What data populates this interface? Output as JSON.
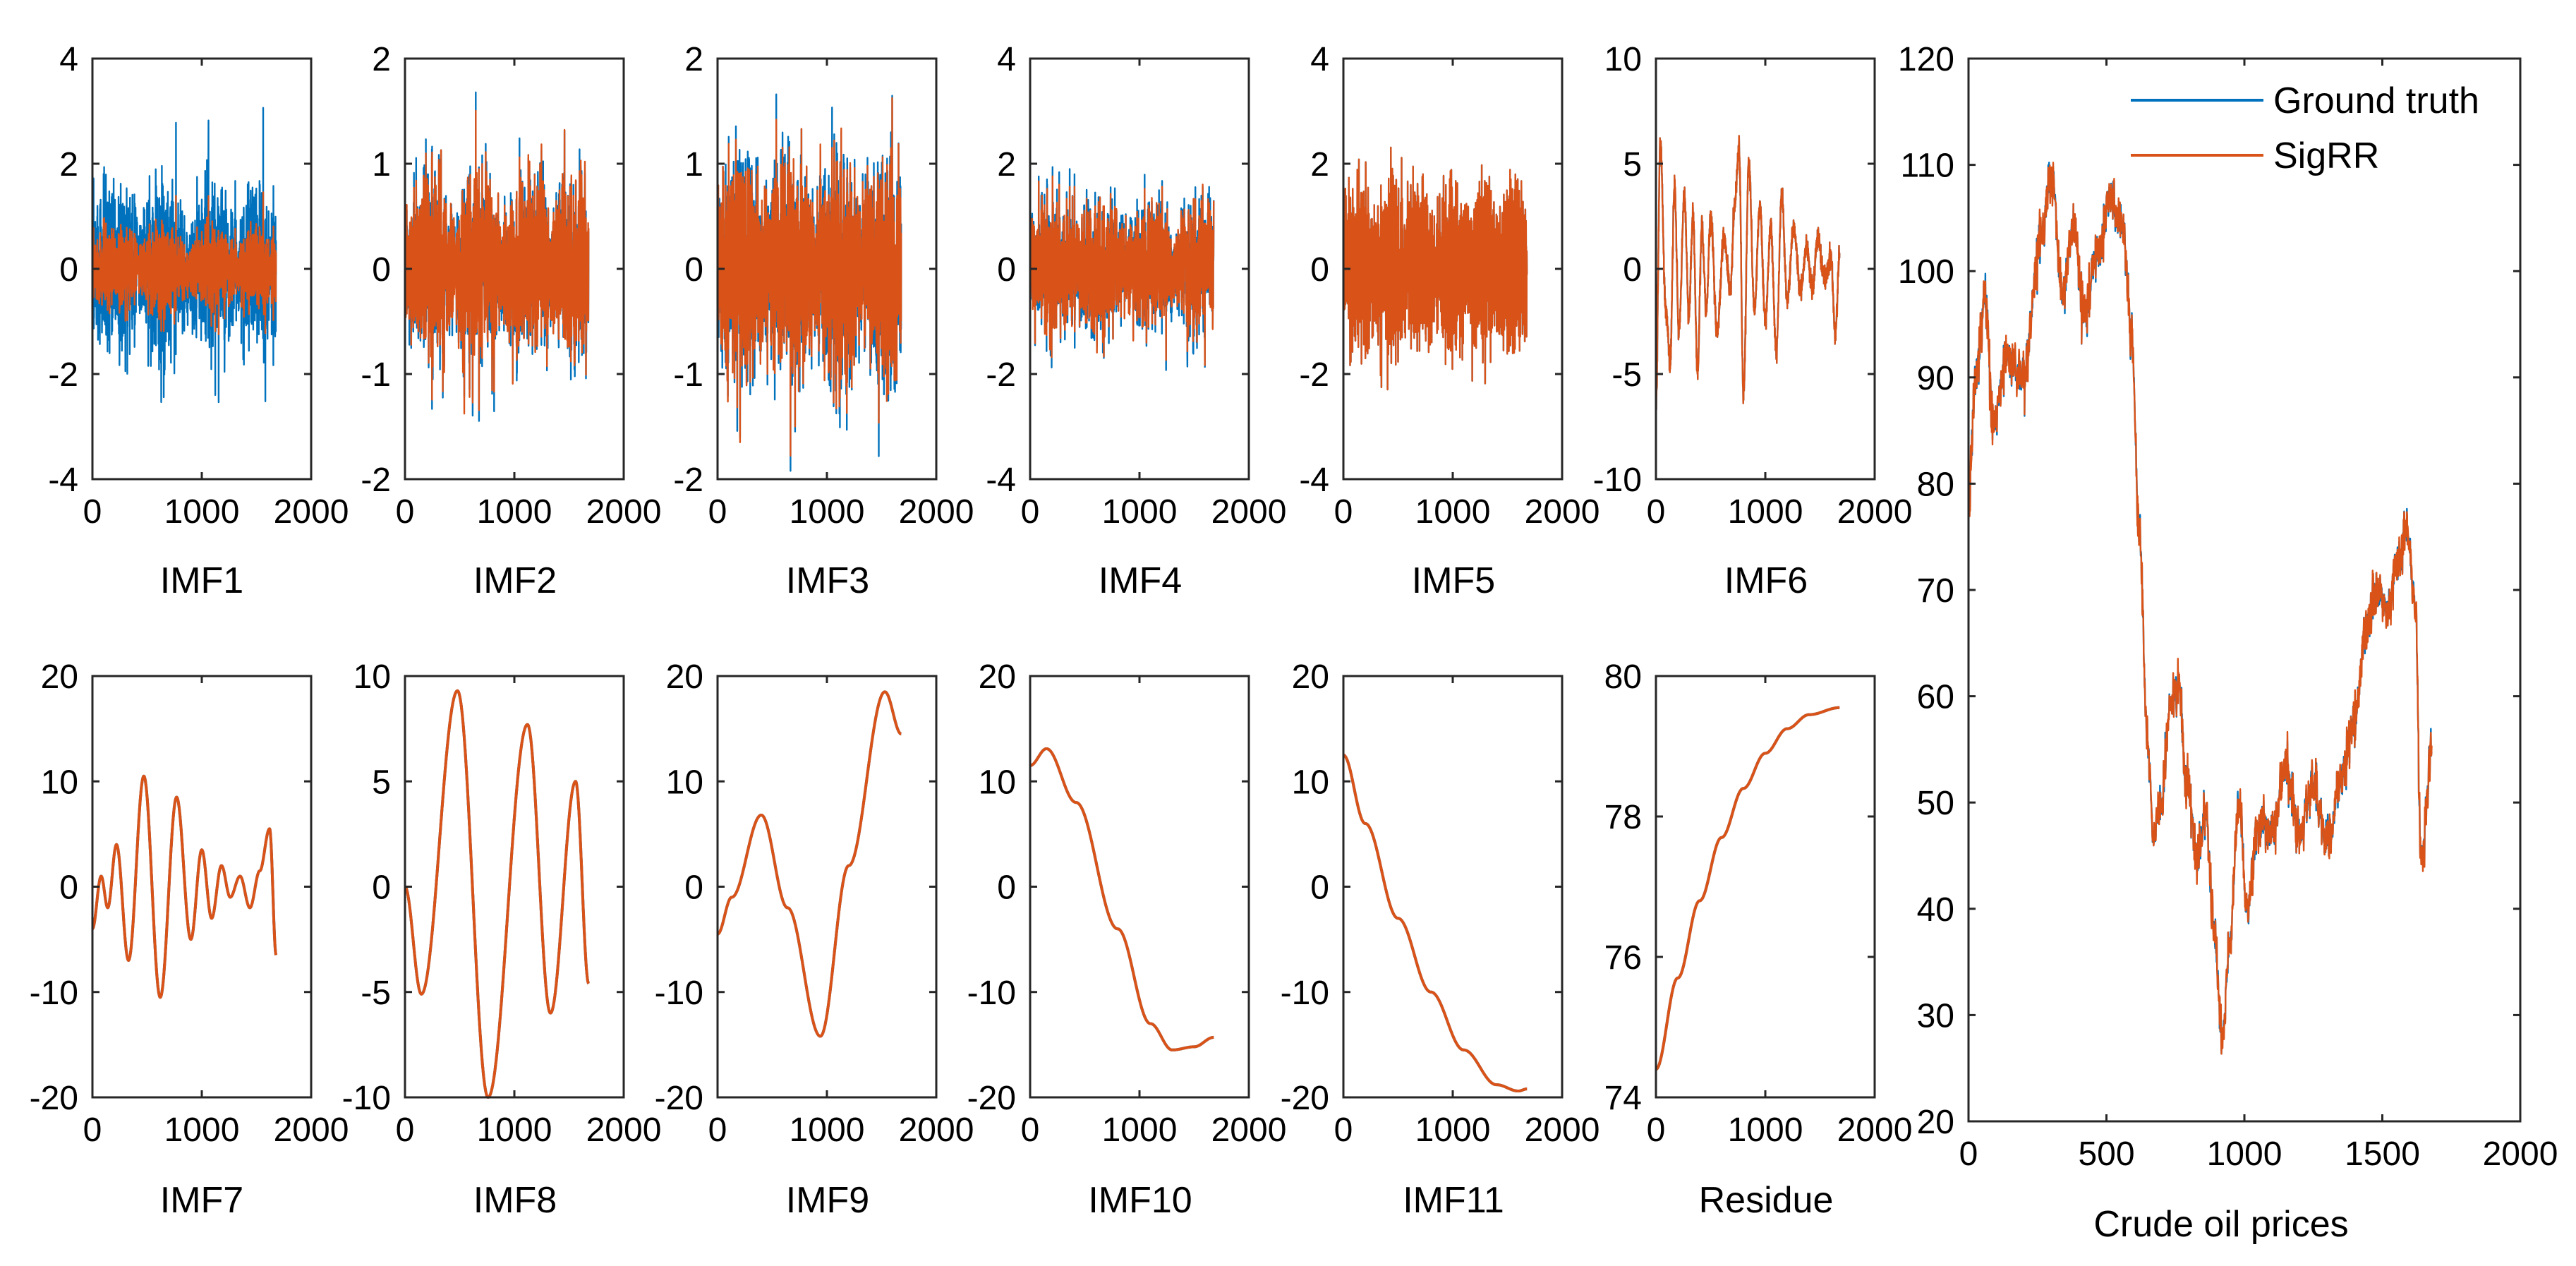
{
  "colors": {
    "ground_truth": "#0072BD",
    "sigrr": "#D95319",
    "axes": "#262626"
  },
  "legend": {
    "placement": "top-right",
    "entries": [
      "Ground truth",
      "SigRR"
    ]
  },
  "chart_data": [
    {
      "id": "imf1",
      "type": "line",
      "xlabel": "IMF1",
      "xlim": [
        0,
        2000
      ],
      "ylim": [
        -4,
        4
      ],
      "xticks": [
        "0",
        "1000",
        "2000"
      ],
      "yticks": [
        "-4",
        "-2",
        "0",
        "2",
        "4"
      ],
      "n": 1680,
      "signal": "noise",
      "amp_gt": 2.6,
      "amp_sr": 1.4,
      "seed": 11
    },
    {
      "id": "imf2",
      "type": "line",
      "xlabel": "IMF2",
      "xlim": [
        0,
        2000
      ],
      "ylim": [
        -2,
        2
      ],
      "xticks": [
        "0",
        "1000",
        "2000"
      ],
      "yticks": [
        "-2",
        "-1",
        "0",
        "1",
        "2"
      ],
      "n": 1680,
      "signal": "noise",
      "amp_gt": 1.55,
      "amp_sr": 1.6,
      "seed": 22
    },
    {
      "id": "imf3",
      "type": "line",
      "xlabel": "IMF3",
      "xlim": [
        0,
        2000
      ],
      "ylim": [
        -2,
        2
      ],
      "xticks": [
        "0",
        "1000",
        "2000"
      ],
      "yticks": [
        "-2",
        "-1",
        "0",
        "1",
        "2"
      ],
      "n": 1680,
      "signal": "noise",
      "amp_gt": 1.9,
      "amp_sr": 1.9,
      "seed": 33
    },
    {
      "id": "imf4",
      "type": "line",
      "xlabel": "IMF4",
      "xlim": [
        0,
        2000
      ],
      "ylim": [
        -4,
        4
      ],
      "xticks": [
        "0",
        "1000",
        "2000"
      ],
      "yticks": [
        "-4",
        "-2",
        "0",
        "2",
        "4"
      ],
      "n": 1680,
      "signal": "noise",
      "amp_gt": 2.2,
      "amp_sr": 2.2,
      "seed": 44
    },
    {
      "id": "imf5",
      "type": "line",
      "xlabel": "IMF5",
      "xlim": [
        0,
        2000
      ],
      "ylim": [
        -4,
        4
      ],
      "xticks": [
        "0",
        "1000",
        "2000"
      ],
      "yticks": [
        "-4",
        "-2",
        "0",
        "2",
        "4"
      ],
      "n": 1680,
      "signal": "burst",
      "amp_gt": 3.1,
      "amp_sr": 3.1,
      "seed": 55
    },
    {
      "id": "imf6",
      "type": "line",
      "xlabel": "IMF6",
      "xlim": [
        0,
        2000
      ],
      "ylim": [
        -10,
        10
      ],
      "xticks": [
        "0",
        "1000",
        "2000"
      ],
      "yticks": [
        "-10",
        "-5",
        "0",
        "5",
        "10"
      ],
      "n": 1680,
      "signal": "oscill",
      "anchors": [
        [
          0,
          -6.5
        ],
        [
          40,
          6
        ],
        [
          90,
          -2
        ],
        [
          130,
          -4.5
        ],
        [
          170,
          4
        ],
        [
          210,
          -3
        ],
        [
          260,
          3.5
        ],
        [
          300,
          -2
        ],
        [
          340,
          2.5
        ],
        [
          380,
          -5
        ],
        [
          420,
          2
        ],
        [
          460,
          -2
        ],
        [
          500,
          2.5
        ],
        [
          560,
          -3
        ],
        [
          620,
          1.5
        ],
        [
          680,
          -1
        ],
        [
          720,
          3
        ],
        [
          760,
          5.8
        ],
        [
          800,
          -6
        ],
        [
          850,
          5
        ],
        [
          900,
          -2
        ],
        [
          950,
          3
        ],
        [
          1000,
          -2.5
        ],
        [
          1050,
          2
        ],
        [
          1100,
          -4
        ],
        [
          1150,
          3.5
        ],
        [
          1200,
          -1.5
        ],
        [
          1260,
          2
        ],
        [
          1320,
          -1
        ],
        [
          1380,
          1
        ],
        [
          1430,
          -1
        ],
        [
          1480,
          1.5
        ],
        [
          1540,
          -0.5
        ],
        [
          1600,
          0.5
        ],
        [
          1640,
          -3
        ],
        [
          1680,
          0.7
        ]
      ]
    },
    {
      "id": "imf7",
      "type": "line",
      "xlabel": "IMF7",
      "xlim": [
        0,
        2000
      ],
      "ylim": [
        -20,
        20
      ],
      "xticks": [
        "0",
        "1000",
        "2000"
      ],
      "yticks": [
        "-20",
        "-10",
        "0",
        "10",
        "20"
      ],
      "n": 1680,
      "signal": "smooth",
      "anchors": [
        [
          0,
          -4
        ],
        [
          80,
          1
        ],
        [
          140,
          -2
        ],
        [
          220,
          4
        ],
        [
          330,
          -7
        ],
        [
          470,
          10.5
        ],
        [
          620,
          -10.5
        ],
        [
          770,
          8.5
        ],
        [
          900,
          -5
        ],
        [
          1000,
          3.5
        ],
        [
          1090,
          -3
        ],
        [
          1180,
          2
        ],
        [
          1260,
          -1
        ],
        [
          1350,
          1
        ],
        [
          1440,
          -2
        ],
        [
          1530,
          1.5
        ],
        [
          1620,
          5.5
        ],
        [
          1680,
          -6.5
        ]
      ]
    },
    {
      "id": "imf8",
      "type": "line",
      "xlabel": "IMF8",
      "xlim": [
        0,
        2000
      ],
      "ylim": [
        -10,
        10
      ],
      "xticks": [
        "0",
        "1000",
        "2000"
      ],
      "yticks": [
        "-10",
        "-5",
        "0",
        "5",
        "10"
      ],
      "n": 1680,
      "signal": "smooth",
      "anchors": [
        [
          0,
          0
        ],
        [
          150,
          -5.1
        ],
        [
          480,
          9.3
        ],
        [
          760,
          -10
        ],
        [
          1120,
          7.7
        ],
        [
          1330,
          -6
        ],
        [
          1560,
          5
        ],
        [
          1680,
          -4.6
        ]
      ]
    },
    {
      "id": "imf9",
      "type": "line",
      "xlabel": "IMF9",
      "xlim": [
        0,
        2000
      ],
      "ylim": [
        -20,
        20
      ],
      "xticks": [
        "0",
        "1000",
        "2000"
      ],
      "yticks": [
        "-20",
        "-10",
        "0",
        "10",
        "20"
      ],
      "n": 1680,
      "signal": "smooth",
      "anchors": [
        [
          0,
          -4.5
        ],
        [
          130,
          -1
        ],
        [
          400,
          6.8
        ],
        [
          640,
          -2
        ],
        [
          940,
          -14.2
        ],
        [
          1200,
          2
        ],
        [
          1530,
          18.5
        ],
        [
          1680,
          14.5
        ]
      ]
    },
    {
      "id": "imf10",
      "type": "line",
      "xlabel": "IMF10",
      "xlim": [
        0,
        2000
      ],
      "ylim": [
        -20,
        20
      ],
      "xticks": [
        "0",
        "1000",
        "2000"
      ],
      "yticks": [
        "-20",
        "-10",
        "0",
        "10",
        "20"
      ],
      "n": 1680,
      "signal": "smooth",
      "anchors": [
        [
          0,
          11.5
        ],
        [
          150,
          13.1
        ],
        [
          420,
          8
        ],
        [
          800,
          -4
        ],
        [
          1100,
          -13
        ],
        [
          1300,
          -15.5
        ],
        [
          1500,
          -15.2
        ],
        [
          1680,
          -14.3
        ]
      ]
    },
    {
      "id": "imf11",
      "type": "line",
      "xlabel": "IMF11",
      "xlim": [
        0,
        2000
      ],
      "ylim": [
        -20,
        20
      ],
      "xticks": [
        "0",
        "1000",
        "2000"
      ],
      "yticks": [
        "-20",
        "-10",
        "0",
        "10",
        "20"
      ],
      "n": 1680,
      "signal": "smooth",
      "anchors": [
        [
          0,
          12.5
        ],
        [
          200,
          6
        ],
        [
          500,
          -3
        ],
        [
          800,
          -10
        ],
        [
          1100,
          -15.5
        ],
        [
          1400,
          -18.8
        ],
        [
          1600,
          -19.4
        ],
        [
          1680,
          -19.2
        ]
      ]
    },
    {
      "id": "residue",
      "type": "line",
      "xlabel": "Residue",
      "xlim": [
        0,
        2000
      ],
      "ylim": [
        74,
        80
      ],
      "xticks": [
        "0",
        "1000",
        "2000"
      ],
      "yticks": [
        "74",
        "76",
        "78",
        "80"
      ],
      "n": 1680,
      "signal": "smooth",
      "anchors": [
        [
          0,
          74.4
        ],
        [
          200,
          75.7
        ],
        [
          400,
          76.8
        ],
        [
          600,
          77.7
        ],
        [
          800,
          78.4
        ],
        [
          1000,
          78.9
        ],
        [
          1200,
          79.25
        ],
        [
          1400,
          79.45
        ],
        [
          1680,
          79.55
        ]
      ]
    },
    {
      "id": "price",
      "type": "line",
      "xlabel": "Crude oil prices",
      "xlim": [
        0,
        2000
      ],
      "ylim": [
        20,
        120
      ],
      "xticks": [
        "0",
        "500",
        "1000",
        "1500",
        "2000"
      ],
      "yticks": [
        "20",
        "30",
        "40",
        "50",
        "60",
        "70",
        "80",
        "90",
        "100",
        "110",
        "120"
      ],
      "n": 1680,
      "signal": "price",
      "series": [
        {
          "name": "Ground truth"
        },
        {
          "name": "SigRR"
        }
      ],
      "anchors": [
        [
          0,
          78
        ],
        [
          25,
          90
        ],
        [
          60,
          97
        ],
        [
          90,
          86
        ],
        [
          140,
          92
        ],
        [
          200,
          90
        ],
        [
          260,
          103
        ],
        [
          300,
          109
        ],
        [
          340,
          98
        ],
        [
          380,
          104
        ],
        [
          420,
          96
        ],
        [
          470,
          102
        ],
        [
          520,
          107
        ],
        [
          560,
          104
        ],
        [
          590,
          94
        ],
        [
          620,
          75
        ],
        [
          650,
          55
        ],
        [
          670,
          47
        ],
        [
          700,
          50
        ],
        [
          730,
          59
        ],
        [
          760,
          61
        ],
        [
          790,
          52
        ],
        [
          830,
          45
        ],
        [
          860,
          49
        ],
        [
          890,
          38
        ],
        [
          920,
          28
        ],
        [
          945,
          36
        ],
        [
          980,
          50
        ],
        [
          1010,
          40
        ],
        [
          1050,
          48
        ],
        [
          1100,
          47
        ],
        [
          1150,
          53
        ],
        [
          1200,
          47
        ],
        [
          1250,
          52
        ],
        [
          1300,
          46
        ],
        [
          1350,
          52
        ],
        [
          1400,
          58
        ],
        [
          1440,
          66
        ],
        [
          1480,
          70
        ],
        [
          1520,
          68
        ],
        [
          1560,
          73
        ],
        [
          1590,
          76
        ],
        [
          1620,
          68
        ],
        [
          1640,
          45
        ],
        [
          1680,
          55
        ]
      ]
    }
  ]
}
